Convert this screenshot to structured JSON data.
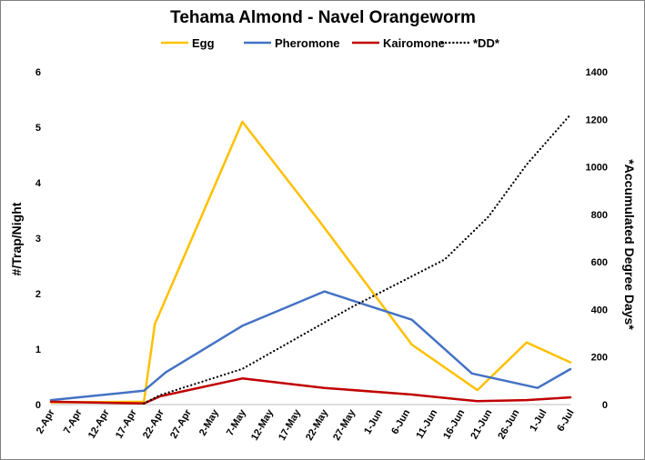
{
  "chart_data": {
    "type": "line",
    "title": "Tehama Almond - Navel Orangeworm",
    "ylabel": "#/Trap/Night",
    "y2label": "*Accumulated Degree Days*",
    "ylim": [
      0,
      6
    ],
    "y2lim": [
      0,
      1400
    ],
    "yticks": [
      0,
      1,
      2,
      3,
      4,
      5,
      6
    ],
    "y2ticks": [
      0,
      200,
      400,
      600,
      800,
      1000,
      1200,
      1400
    ],
    "x_ticks": [
      "2-Apr",
      "7-Apr",
      "12-Apr",
      "17-Apr",
      "22-Apr",
      "27-Apr",
      "2-May",
      "7-May",
      "12-May",
      "17-May",
      "22-May",
      "27-May",
      "1-Jun",
      "6-Jun",
      "11-Jun",
      "16-Jun",
      "21-Jun",
      "26-Jun",
      "1-Jul",
      "6-Jul"
    ],
    "grid": false,
    "legend_position": "top",
    "series": [
      {
        "name": "Egg",
        "axis": "left",
        "color": "#FFC000",
        "style": "solid",
        "x": [
          "2-Apr",
          "19-Apr",
          "21-Apr",
          "7-May",
          "21-May",
          "7-Jun",
          "19-Jun",
          "28-Jun",
          "6-Jul"
        ],
        "values": [
          0.04,
          0.05,
          1.45,
          5.1,
          3.32,
          1.08,
          0.26,
          1.12,
          0.76
        ]
      },
      {
        "name": "Pheromone",
        "axis": "left",
        "color": "#4472C4",
        "style": "solid",
        "x": [
          "2-Apr",
          "19-Apr",
          "23-Apr",
          "7-May",
          "22-May",
          "7-Jun",
          "18-Jun",
          "30-Jun",
          "6-Jul"
        ],
        "values": [
          0.08,
          0.25,
          0.58,
          1.42,
          2.04,
          1.53,
          0.56,
          0.3,
          0.64
        ]
      },
      {
        "name": "Kairomone",
        "axis": "left",
        "color": "#C00000",
        "style": "solid",
        "x": [
          "2-Apr",
          "19-Apr",
          "22-Apr",
          "7-May",
          "22-May",
          "7-Jun",
          "19-Jun",
          "28-Jun",
          "6-Jul"
        ],
        "values": [
          0.05,
          0.02,
          0.15,
          0.47,
          0.3,
          0.18,
          0.06,
          0.08,
          0.13
        ]
      },
      {
        "name": "*DD*",
        "axis": "right",
        "color": "#000000",
        "style": "dotted",
        "x": [
          "19-Apr",
          "22-Apr",
          "7-May",
          "27-May",
          "13-Jun",
          "21-Jun",
          "28-Jun",
          "6-Jul"
        ],
        "values": [
          5,
          40,
          150,
          410,
          610,
          790,
          1010,
          1220
        ]
      }
    ]
  }
}
